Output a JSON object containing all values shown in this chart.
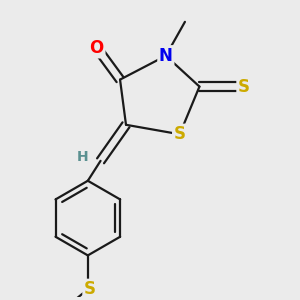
{
  "bg_color": "#ebebeb",
  "bond_color": "#1a1a1a",
  "atom_colors": {
    "O": "#ff0000",
    "N": "#0000ee",
    "S": "#ccaa00",
    "H": "#5a9090",
    "C": "#1a1a1a"
  },
  "line_width": 1.6,
  "font_size": 12,
  "font_size_small": 10
}
